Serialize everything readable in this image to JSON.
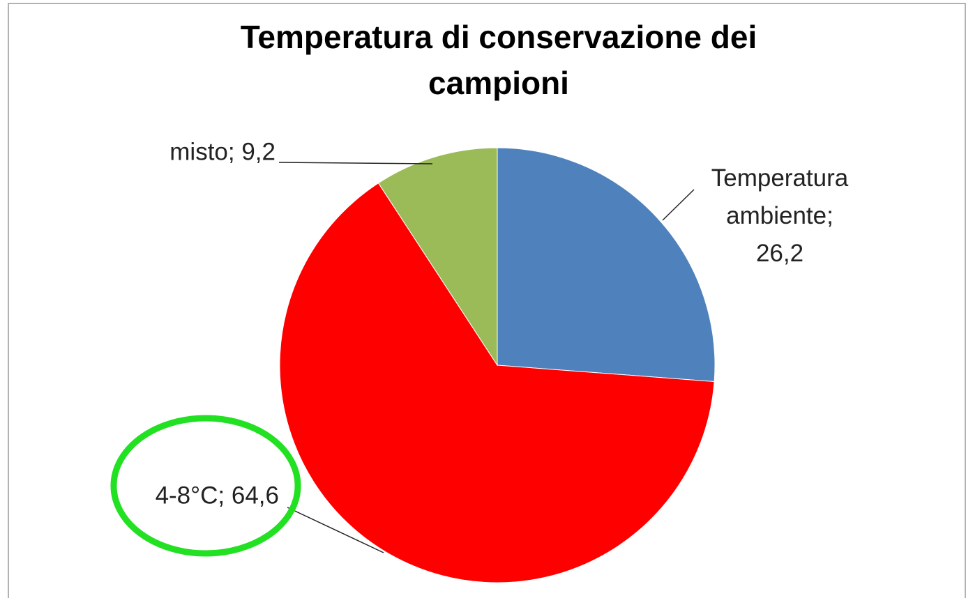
{
  "chart_data": {
    "type": "pie",
    "title": "Temperatura di conservazione dei campioni",
    "values": [
      26.2,
      64.6,
      9.2
    ],
    "value_labels": [
      "Temperatura ambiente; 26,2",
      "4-8°C; 64,6",
      "misto; 9,2"
    ],
    "colors": [
      "#4f81bd",
      "#ff0000",
      "#9bbb59"
    ]
  }
}
